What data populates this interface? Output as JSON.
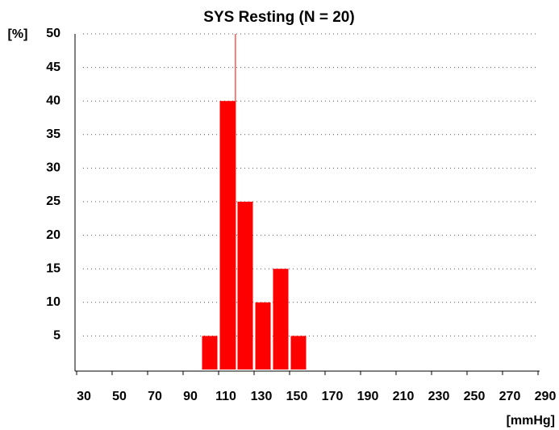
{
  "chart_data": {
    "type": "histogram",
    "title": "SYS Resting (N = 20)",
    "y_label": "[%]",
    "x_label": "[mmHg]",
    "bins": [
      100,
      110,
      120,
      130,
      140,
      150,
      160
    ],
    "values": [
      5,
      40,
      25,
      10,
      15,
      5
    ],
    "color": "#ff0000",
    "reference_x": 119.5,
    "reference_color": "#ff0000",
    "xlim": [
      30,
      290
    ],
    "xticks": [
      30,
      50,
      70,
      90,
      110,
      130,
      150,
      170,
      190,
      210,
      230,
      250,
      270,
      290
    ],
    "ylim": [
      0,
      50
    ],
    "yticks": [
      5,
      10,
      15,
      20,
      25,
      30,
      35,
      40,
      45,
      50
    ],
    "grid": true
  }
}
